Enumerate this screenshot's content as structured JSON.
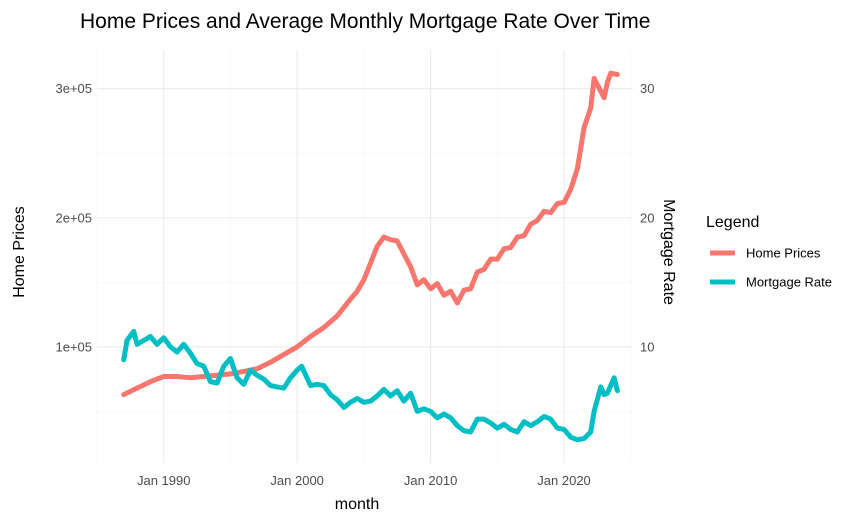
{
  "chart_data": {
    "type": "line",
    "title": "Home Prices and Average Monthly Mortgage Rate Over Time",
    "xlabel": "month",
    "ylabel": "Home Prices",
    "y2label": "Mortgage Rate",
    "xlim": [
      "1985-01",
      "2025-03"
    ],
    "ylim": [
      10000,
      330000
    ],
    "y2lim": [
      1,
      33
    ],
    "x_ticks": [
      "Jan 1990",
      "Jan 2000",
      "Jan 2010",
      "Jan 2020"
    ],
    "x_tick_dates": [
      "1990-01",
      "2000-01",
      "2010-01",
      "2020-01"
    ],
    "y_ticks": [
      "1e+05",
      "2e+05",
      "3e+05"
    ],
    "y_tick_values": [
      100000,
      200000,
      300000
    ],
    "y2_ticks": [
      "10",
      "20",
      "30"
    ],
    "y2_tick_values": [
      10,
      20,
      30
    ],
    "grid": true,
    "legend": {
      "title": "Legend",
      "position": "right"
    },
    "series": [
      {
        "name": "Home Prices",
        "axis": "left",
        "color": "#F8766D",
        "points": [
          [
            "1987-01",
            63000
          ],
          [
            "1988-01",
            68000
          ],
          [
            "1989-01",
            73000
          ],
          [
            "1990-01",
            77000
          ],
          [
            "1991-01",
            77000
          ],
          [
            "1992-01",
            76000
          ],
          [
            "1993-01",
            77000
          ],
          [
            "1994-01",
            78000
          ],
          [
            "1995-01",
            79000
          ],
          [
            "1996-01",
            81000
          ],
          [
            "1997-01",
            83000
          ],
          [
            "1998-01",
            88000
          ],
          [
            "1999-01",
            94000
          ],
          [
            "2000-01",
            100000
          ],
          [
            "2001-01",
            108000
          ],
          [
            "2002-01",
            115000
          ],
          [
            "2003-01",
            124000
          ],
          [
            "2004-01",
            137000
          ],
          [
            "2004-07",
            143000
          ],
          [
            "2005-01",
            152000
          ],
          [
            "2005-07",
            165000
          ],
          [
            "2006-01",
            178000
          ],
          [
            "2006-07",
            185000
          ],
          [
            "2007-01",
            183000
          ],
          [
            "2007-07",
            182000
          ],
          [
            "2008-01",
            172000
          ],
          [
            "2008-07",
            162000
          ],
          [
            "2009-01",
            148000
          ],
          [
            "2009-07",
            152000
          ],
          [
            "2010-01",
            145000
          ],
          [
            "2010-07",
            149000
          ],
          [
            "2011-01",
            140000
          ],
          [
            "2011-07",
            143000
          ],
          [
            "2012-01",
            134000
          ],
          [
            "2012-07",
            144000
          ],
          [
            "2013-01",
            145000
          ],
          [
            "2013-07",
            158000
          ],
          [
            "2014-01",
            160000
          ],
          [
            "2014-07",
            168000
          ],
          [
            "2015-01",
            168000
          ],
          [
            "2015-07",
            176000
          ],
          [
            "2016-01",
            177000
          ],
          [
            "2016-07",
            185000
          ],
          [
            "2017-01",
            186000
          ],
          [
            "2017-07",
            195000
          ],
          [
            "2018-01",
            198000
          ],
          [
            "2018-07",
            205000
          ],
          [
            "2019-01",
            204000
          ],
          [
            "2019-07",
            211000
          ],
          [
            "2020-01",
            212000
          ],
          [
            "2020-07",
            222000
          ],
          [
            "2021-01",
            238000
          ],
          [
            "2021-07",
            270000
          ],
          [
            "2022-01",
            285000
          ],
          [
            "2022-04",
            308000
          ],
          [
            "2022-10",
            298000
          ],
          [
            "2023-01",
            293000
          ],
          [
            "2023-04",
            305000
          ],
          [
            "2023-07",
            312000
          ],
          [
            "2024-01",
            311000
          ]
        ]
      },
      {
        "name": "Mortgage Rate",
        "axis": "right",
        "color": "#00BFC4",
        "points": [
          [
            "1987-01",
            9.0
          ],
          [
            "1987-04",
            10.5
          ],
          [
            "1987-10",
            11.2
          ],
          [
            "1988-01",
            10.2
          ],
          [
            "1988-07",
            10.5
          ],
          [
            "1989-01",
            10.8
          ],
          [
            "1989-07",
            10.2
          ],
          [
            "1990-01",
            10.7
          ],
          [
            "1990-07",
            10.0
          ],
          [
            "1991-01",
            9.6
          ],
          [
            "1991-07",
            10.2
          ],
          [
            "1992-01",
            9.5
          ],
          [
            "1992-07",
            8.7
          ],
          [
            "1993-01",
            8.5
          ],
          [
            "1993-07",
            7.3
          ],
          [
            "1994-01",
            7.2
          ],
          [
            "1994-07",
            8.5
          ],
          [
            "1995-01",
            9.1
          ],
          [
            "1995-07",
            7.6
          ],
          [
            "1996-01",
            7.1
          ],
          [
            "1996-07",
            8.2
          ],
          [
            "1997-01",
            7.8
          ],
          [
            "1997-07",
            7.5
          ],
          [
            "1998-01",
            7.0
          ],
          [
            "1998-07",
            6.9
          ],
          [
            "1999-01",
            6.8
          ],
          [
            "1999-07",
            7.6
          ],
          [
            "2000-01",
            8.2
          ],
          [
            "2000-05",
            8.5
          ],
          [
            "2001-01",
            7.0
          ],
          [
            "2001-07",
            7.1
          ],
          [
            "2002-01",
            7.0
          ],
          [
            "2002-07",
            6.3
          ],
          [
            "2003-01",
            5.9
          ],
          [
            "2003-07",
            5.3
          ],
          [
            "2004-01",
            5.7
          ],
          [
            "2004-07",
            6.0
          ],
          [
            "2005-01",
            5.7
          ],
          [
            "2005-07",
            5.8
          ],
          [
            "2006-01",
            6.2
          ],
          [
            "2006-07",
            6.7
          ],
          [
            "2007-01",
            6.2
          ],
          [
            "2007-07",
            6.6
          ],
          [
            "2008-01",
            5.8
          ],
          [
            "2008-07",
            6.4
          ],
          [
            "2009-01",
            5.0
          ],
          [
            "2009-07",
            5.2
          ],
          [
            "2010-01",
            5.0
          ],
          [
            "2010-07",
            4.5
          ],
          [
            "2011-01",
            4.8
          ],
          [
            "2011-07",
            4.5
          ],
          [
            "2012-01",
            3.9
          ],
          [
            "2012-07",
            3.5
          ],
          [
            "2013-01",
            3.4
          ],
          [
            "2013-07",
            4.4
          ],
          [
            "2014-01",
            4.4
          ],
          [
            "2014-07",
            4.1
          ],
          [
            "2015-01",
            3.7
          ],
          [
            "2015-07",
            4.0
          ],
          [
            "2016-01",
            3.6
          ],
          [
            "2016-07",
            3.4
          ],
          [
            "2017-01",
            4.2
          ],
          [
            "2017-07",
            3.9
          ],
          [
            "2018-01",
            4.2
          ],
          [
            "2018-07",
            4.6
          ],
          [
            "2019-01",
            4.4
          ],
          [
            "2019-07",
            3.7
          ],
          [
            "2020-01",
            3.6
          ],
          [
            "2020-07",
            3.0
          ],
          [
            "2021-01",
            2.8
          ],
          [
            "2021-07",
            2.9
          ],
          [
            "2022-01",
            3.4
          ],
          [
            "2022-04",
            5.0
          ],
          [
            "2022-10",
            6.9
          ],
          [
            "2023-01",
            6.3
          ],
          [
            "2023-04",
            6.4
          ],
          [
            "2023-10",
            7.6
          ],
          [
            "2024-01",
            6.6
          ]
        ]
      }
    ]
  }
}
